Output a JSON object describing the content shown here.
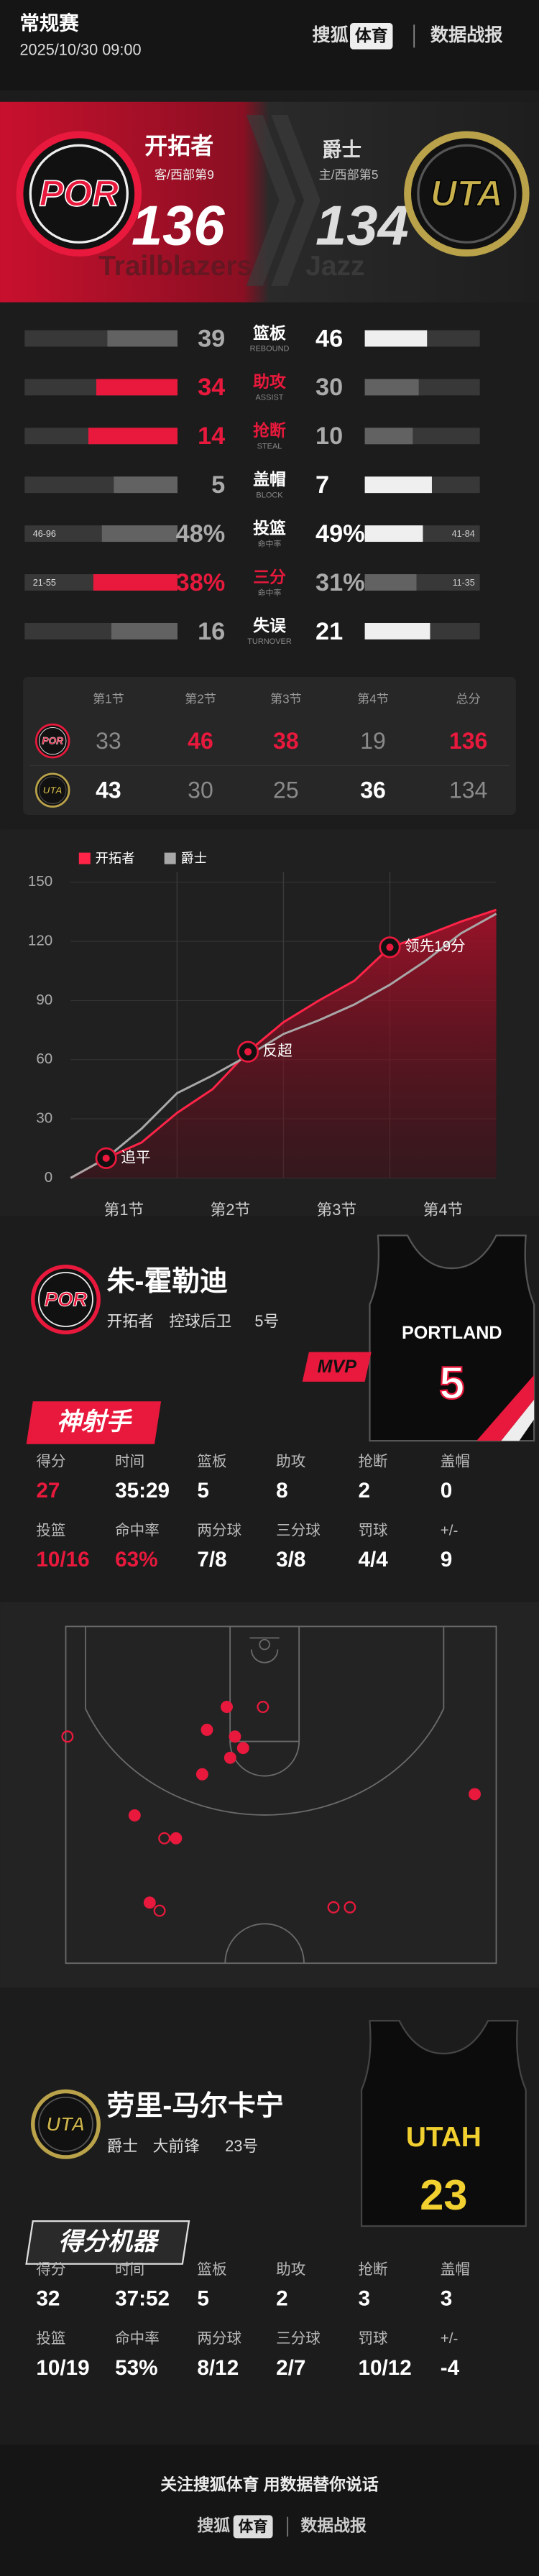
{
  "header": {
    "league": "常规赛",
    "datetime": "2025/10/30 09:00",
    "brand": "搜狐",
    "brand_box": "体育",
    "report": "数据战报"
  },
  "score": {
    "teams": [
      {
        "abbr": "POR",
        "name": "开拓者",
        "standing": "客/西部第9",
        "points": 136,
        "watermark": "Trailblazers"
      },
      {
        "abbr": "UTA",
        "name": "爵士",
        "standing": "主/西部第5",
        "points": 134,
        "watermark": "Jazz"
      }
    ]
  },
  "team_stats": {
    "rows": [
      {
        "label": "篮板",
        "sublabel": "REBOUND",
        "values": [
          39,
          46
        ]
      },
      {
        "label": "助攻",
        "sublabel": "ASSIST",
        "values": [
          34,
          30
        ]
      },
      {
        "label": "抢断",
        "sublabel": "STEAL",
        "values": [
          14,
          10
        ]
      },
      {
        "label": "盖帽",
        "sublabel": "BLOCK",
        "values": [
          5,
          7
        ]
      },
      {
        "label": "投篮",
        "sublabel": "命中率",
        "values": [
          48,
          49
        ],
        "value_labels": [
          "48%",
          "49%"
        ],
        "details": [
          "46-96",
          "41-84"
        ]
      },
      {
        "label": "三分",
        "sublabel": "命中率",
        "values": [
          38,
          31
        ],
        "value_labels": [
          "38%",
          "31%"
        ],
        "details": [
          "21-55",
          "11-35"
        ]
      },
      {
        "label": "失误",
        "sublabel": "TURNOVER",
        "values": [
          16,
          21
        ]
      }
    ]
  },
  "quarters": {
    "headers": [
      "第1节",
      "第2节",
      "第3节",
      "第4节",
      "总分"
    ],
    "rows": [
      {
        "values": [
          33,
          46,
          38,
          19,
          136
        ]
      },
      {
        "values": [
          43,
          30,
          25,
          36,
          134
        ]
      }
    ]
  },
  "chart_data": {
    "type": "line",
    "x": [
      0,
      4,
      8,
      12,
      16,
      20,
      24,
      28,
      32,
      36,
      40,
      44,
      48
    ],
    "xlim": [
      0,
      48
    ],
    "categories": [
      "第1节",
      "第2节",
      "第3节",
      "第4节"
    ],
    "ylim": [
      0,
      155
    ],
    "yticks": [
      0,
      30,
      60,
      90,
      120,
      150
    ],
    "grid": true,
    "series": [
      {
        "name": "开拓者",
        "color": "#ff2448",
        "values": [
          0,
          10,
          18,
          33,
          45,
          64,
          79,
          90,
          100,
          117,
          123,
          130,
          136
        ]
      },
      {
        "name": "爵士",
        "color": "#a8a8a8",
        "values": [
          0,
          10,
          25,
          43,
          52,
          62,
          73,
          80,
          88,
          98,
          110,
          124,
          134
        ]
      }
    ],
    "annotations": [
      {
        "label": "追平",
        "x": 4,
        "y": 10
      },
      {
        "label": "反超",
        "x": 20,
        "y": 64
      },
      {
        "label": "领先19分",
        "x": 36,
        "y": 117
      }
    ]
  },
  "players": [
    {
      "name": "朱-霍勒迪",
      "team": "开拓者",
      "position": "控球后卫",
      "number": "5号",
      "jersey_city": "PORTLAND",
      "jersey_number": "5",
      "badge": "MVP",
      "title": "神射手",
      "stats": [
        {
          "label": "得分",
          "value": "27"
        },
        {
          "label": "时间",
          "value": "35:29"
        },
        {
          "label": "篮板",
          "value": "5"
        },
        {
          "label": "助攻",
          "value": "8"
        },
        {
          "label": "抢断",
          "value": "2"
        },
        {
          "label": "盖帽",
          "value": "0"
        },
        {
          "label": "投篮",
          "value": "10/16"
        },
        {
          "label": "命中率",
          "value": "63%"
        },
        {
          "label": "两分球",
          "value": "7/8"
        },
        {
          "label": "三分球",
          "value": "3/8"
        },
        {
          "label": "罚球",
          "value": "4/4"
        },
        {
          "label": "+/-",
          "value": "9"
        }
      ]
    },
    {
      "name": "劳里-马尔卡宁",
      "team": "爵士",
      "position": "大前锋",
      "number": "23号",
      "jersey_city": "UTAH",
      "jersey_number": "23",
      "title": "得分机器",
      "stats": [
        {
          "label": "得分",
          "value": "32"
        },
        {
          "label": "时间",
          "value": "37:52"
        },
        {
          "label": "篮板",
          "value": "5"
        },
        {
          "label": "助攻",
          "value": "2"
        },
        {
          "label": "抢断",
          "value": "3"
        },
        {
          "label": "盖帽",
          "value": "3"
        },
        {
          "label": "投篮",
          "value": "10/19"
        },
        {
          "label": "命中率",
          "value": "53%"
        },
        {
          "label": "两分球",
          "value": "8/12"
        },
        {
          "label": "三分球",
          "value": "2/7"
        },
        {
          "label": "罚球",
          "value": "10/12"
        },
        {
          "label": "+/-",
          "value": "-4"
        }
      ]
    }
  ],
  "shot_chart": {
    "xlim": [
      0,
      100
    ],
    "ylim": [
      0,
      100
    ],
    "shots": [
      {
        "x": 37.4,
        "y": 23.9,
        "made": true
      },
      {
        "x": 39.3,
        "y": 32.7,
        "made": true
      },
      {
        "x": 32.8,
        "y": 30.7,
        "made": true
      },
      {
        "x": 41.2,
        "y": 36.1,
        "made": true
      },
      {
        "x": 31.7,
        "y": 43.9,
        "made": true
      },
      {
        "x": 16.0,
        "y": 56.1,
        "made": true
      },
      {
        "x": 25.6,
        "y": 62.9,
        "made": true
      },
      {
        "x": 95.0,
        "y": 49.8,
        "made": true
      },
      {
        "x": 19.5,
        "y": 82.0,
        "made": true
      },
      {
        "x": 38.2,
        "y": 39.0,
        "made": true
      },
      {
        "x": 45.8,
        "y": 23.9,
        "made": false
      },
      {
        "x": 0.4,
        "y": 32.7,
        "made": false
      },
      {
        "x": 21.8,
        "y": 84.4,
        "made": false
      },
      {
        "x": 62.2,
        "y": 83.4,
        "made": false
      },
      {
        "x": 66.0,
        "y": 83.4,
        "made": false
      },
      {
        "x": 22.9,
        "y": 62.9,
        "made": false
      }
    ]
  },
  "footer": {
    "slogan": "关注搜狐体育 用数据替你说话",
    "brand": "搜狐",
    "brand_box": "体育",
    "report": "数据战报"
  }
}
